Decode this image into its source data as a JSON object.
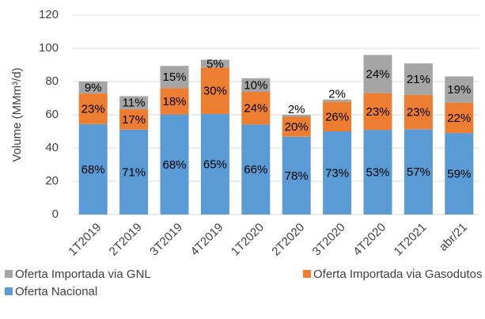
{
  "chart_data": {
    "type": "stacked_bar",
    "y_label": "Volume (MMm³/d)",
    "categories": [
      "1T2019",
      "2T2019",
      "3T2019",
      "4T2019",
      "1T2020",
      "2T2020",
      "3T2020",
      "4T2020",
      "1T2021",
      "abr/21"
    ],
    "series": [
      {
        "name": "Oferta Nacional",
        "color": "#5b9bd5",
        "values": [
          54.4,
          51.1,
          60.2,
          60.5,
          54.1,
          46.8,
          50.0,
          50.9,
          51.3,
          49.0
        ],
        "data_labels": [
          "68%",
          "71%",
          "68%",
          "65%",
          "66%",
          "78%",
          "73%",
          "53%",
          "57%",
          "59%"
        ]
      },
      {
        "name": "Oferta Importada via Gasodutos",
        "color": "#ed7d31",
        "values": [
          18.4,
          12.2,
          15.9,
          27.9,
          19.7,
          12.0,
          17.8,
          22.1,
          20.7,
          18.3
        ],
        "data_labels": [
          "23%",
          "17%",
          "18%",
          "30%",
          "24%",
          "20%",
          "26%",
          "23%",
          "23%",
          "22%"
        ]
      },
      {
        "name": "Oferta Importada via GNL",
        "color": "#a5a5a5",
        "values": [
          7.2,
          7.9,
          13.3,
          4.7,
          8.2,
          1.2,
          1.4,
          23.0,
          18.9,
          15.8
        ],
        "data_labels": [
          "9%",
          "11%",
          "15%",
          "5%",
          "10%",
          "2%",
          "2%",
          "24%",
          "21%",
          "19%"
        ]
      }
    ],
    "ylim": [
      0,
      120
    ],
    "yticks": [
      0,
      20,
      40,
      60,
      80,
      100,
      120
    ],
    "grid": true
  }
}
